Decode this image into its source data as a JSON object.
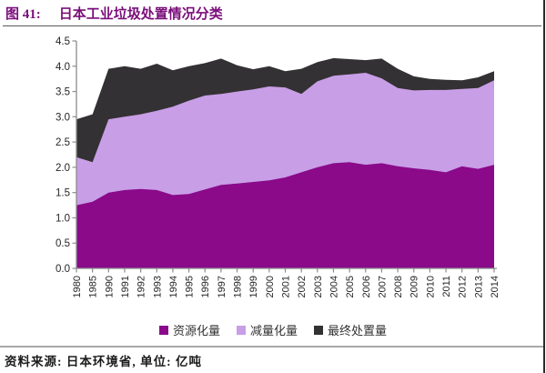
{
  "header": {
    "figure_label": "图 41:",
    "title": "日本工业垃圾处置情况分类"
  },
  "footer": {
    "source": "资料来源: 日本环境省, 单位: 亿吨"
  },
  "colors": {
    "title_text": "#7B0E7B",
    "axis": "#8C8C8C",
    "tick_label": "#262626",
    "top_rule": "#5a5a5a",
    "bottom_rule": "#a8a8a8",
    "right_border": "#2a2a2a"
  },
  "chart_data": {
    "type": "area",
    "stacked": true,
    "title": "日本工业垃圾处置情况分类",
    "unit": "亿吨",
    "xlabel": "",
    "ylabel": "",
    "ylim": [
      0,
      4.5
    ],
    "ytick_step": 0.5,
    "ytick_labels": [
      "0.0",
      "0.5",
      "1.0",
      "1.5",
      "2.0",
      "2.5",
      "3.0",
      "3.5",
      "4.0",
      "4.5"
    ],
    "grid": false,
    "legend_position": "bottom",
    "categories": [
      "1980",
      "1985",
      "1990",
      "1991",
      "1992",
      "1993",
      "1994",
      "1995",
      "1996",
      "1997",
      "1998",
      "1999",
      "2000",
      "2001",
      "2002",
      "2003",
      "2004",
      "2005",
      "2006",
      "2007",
      "2008",
      "2009",
      "2010",
      "2011",
      "2012",
      "2013",
      "2014"
    ],
    "series": [
      {
        "name": "资源化量",
        "color": "#8A0A8A",
        "values": [
          1.25,
          1.32,
          1.5,
          1.55,
          1.57,
          1.55,
          1.45,
          1.47,
          1.56,
          1.65,
          1.68,
          1.71,
          1.74,
          1.8,
          1.9,
          2.0,
          2.08,
          2.1,
          2.05,
          2.08,
          2.02,
          1.98,
          1.95,
          1.9,
          2.02,
          1.97,
          2.05
        ]
      },
      {
        "name": "减量化量",
        "color": "#C89EE6",
        "values": [
          0.95,
          0.78,
          1.45,
          1.45,
          1.48,
          1.57,
          1.75,
          1.85,
          1.86,
          1.8,
          1.82,
          1.83,
          1.86,
          1.78,
          1.55,
          1.7,
          1.73,
          1.74,
          1.82,
          1.68,
          1.55,
          1.54,
          1.58,
          1.63,
          1.53,
          1.6,
          1.67
        ]
      },
      {
        "name": "最终处置量",
        "color": "#333133",
        "values": [
          0.75,
          0.95,
          1.0,
          1.0,
          0.9,
          0.93,
          0.72,
          0.68,
          0.64,
          0.7,
          0.52,
          0.4,
          0.4,
          0.32,
          0.5,
          0.38,
          0.35,
          0.3,
          0.25,
          0.39,
          0.38,
          0.28,
          0.22,
          0.2,
          0.17,
          0.21,
          0.18
        ]
      }
    ]
  }
}
